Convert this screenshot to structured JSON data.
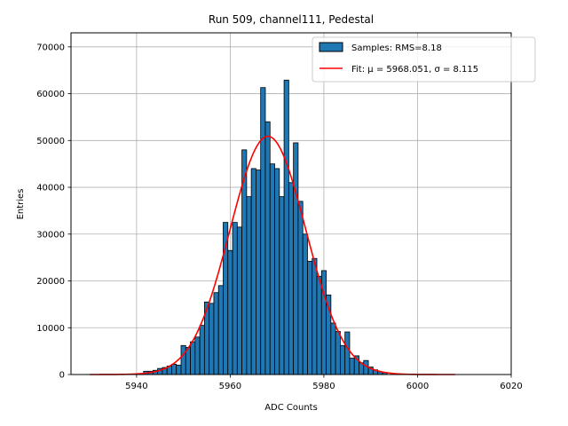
{
  "chart_data": {
    "type": "bar",
    "title": "Run 509, channel111, Pedestal",
    "xlabel": "ADC Counts",
    "ylabel": "Entries",
    "xlim": [
      5926,
      6020
    ],
    "ylim": [
      0,
      73000
    ],
    "xticks": [
      5940,
      5960,
      5980,
      6000,
      6020
    ],
    "yticks": [
      0,
      10000,
      20000,
      30000,
      40000,
      50000,
      60000,
      70000
    ],
    "grid": true,
    "legend_position": "top-right",
    "bin_width": 1,
    "bins": [
      [
        5942,
        700
      ],
      [
        5943,
        700
      ],
      [
        5944,
        900
      ],
      [
        5945,
        1300
      ],
      [
        5946,
        1500
      ],
      [
        5947,
        1800
      ],
      [
        5948,
        2200
      ],
      [
        5949,
        2000
      ],
      [
        5950,
        6200
      ],
      [
        5951,
        5800
      ],
      [
        5952,
        7000
      ],
      [
        5953,
        8000
      ],
      [
        5954,
        10500
      ],
      [
        5955,
        15500
      ],
      [
        5956,
        15200
      ],
      [
        5957,
        17500
      ],
      [
        5958,
        19000
      ],
      [
        5959,
        32500
      ],
      [
        5960,
        26500
      ],
      [
        5961,
        32500
      ],
      [
        5962,
        31500
      ],
      [
        5963,
        48000
      ],
      [
        5964,
        38000
      ],
      [
        5965,
        44000
      ],
      [
        5966,
        43700
      ],
      [
        5967,
        61300
      ],
      [
        5968,
        54000
      ],
      [
        5969,
        45000
      ],
      [
        5970,
        44000
      ],
      [
        5971,
        38000
      ],
      [
        5972,
        62900
      ],
      [
        5973,
        41000
      ],
      [
        5974,
        49500
      ],
      [
        5975,
        37000
      ],
      [
        5976,
        30000
      ],
      [
        5977,
        24200
      ],
      [
        5978,
        24800
      ],
      [
        5979,
        21000
      ],
      [
        5980,
        22200
      ],
      [
        5981,
        17000
      ],
      [
        5982,
        11000
      ],
      [
        5983,
        9200
      ],
      [
        5984,
        6200
      ],
      [
        5985,
        9100
      ],
      [
        5986,
        3500
      ],
      [
        5987,
        4000
      ],
      [
        5988,
        2500
      ],
      [
        5989,
        3000
      ],
      [
        5990,
        1600
      ],
      [
        5991,
        1000
      ],
      [
        5992,
        600
      ],
      [
        5993,
        400
      ]
    ],
    "series": [
      {
        "name": "Samples: RMS=8.18",
        "kind": "histogram",
        "color": "#1f77b4",
        "edgecolor": "#000000"
      },
      {
        "name": "Fit: μ = 5968.051, σ = 8.115",
        "kind": "gaussian-fit",
        "color": "#ff0000",
        "mu": 5968.051,
        "sigma": 8.115,
        "amplitude": 50900,
        "x_range": [
          5930,
          6008
        ]
      }
    ]
  }
}
